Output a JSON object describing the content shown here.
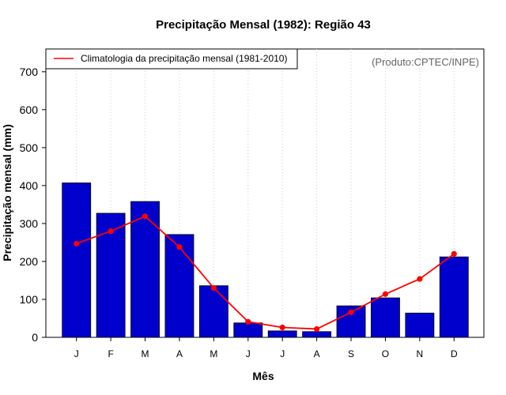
{
  "chart_data": {
    "type": "bar",
    "title": "Precipitação Mensal (1982): Região 43",
    "xlabel": "Mês",
    "ylabel": "Precipitação mensal (mm)",
    "ylim": [
      0,
      760
    ],
    "yticks": [
      0,
      100,
      200,
      300,
      400,
      500,
      600,
      700
    ],
    "categories": [
      "J",
      "F",
      "M",
      "A",
      "M",
      "J",
      "J",
      "A",
      "S",
      "O",
      "N",
      "D"
    ],
    "series": [
      {
        "name": "Precipitação mensal 1982",
        "type": "bar",
        "color": "#0000cd",
        "values": [
          407,
          327,
          358,
          271,
          136,
          38,
          17,
          15,
          83,
          104,
          64,
          212
        ]
      },
      {
        "name": "Climatologia da precipitação mensal (1981-2010)",
        "type": "line",
        "color": "#ff0000",
        "values": [
          247,
          280,
          319,
          238,
          130,
          41,
          26,
          22,
          66,
          114,
          154,
          220
        ]
      }
    ],
    "legend": {
      "position": "top-left",
      "entries": [
        "Climatologia da precipitação mensal (1981-2010)"
      ]
    },
    "annotation": "(Produto:CPTEC/INPE)",
    "grid": "vertical dotted"
  }
}
